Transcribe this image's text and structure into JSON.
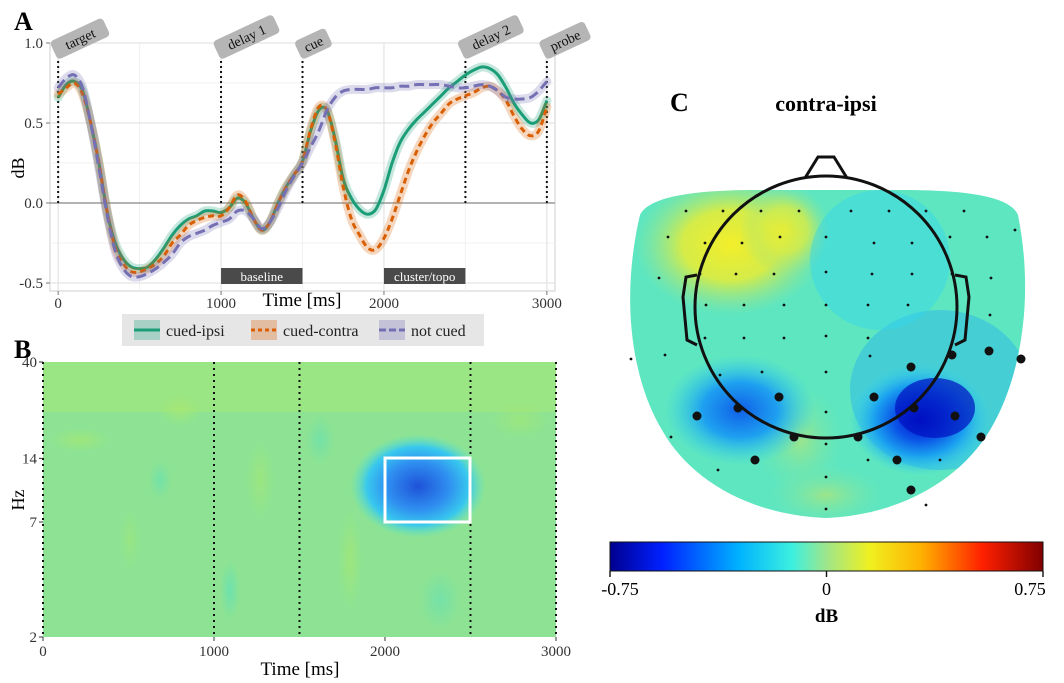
{
  "panels": {
    "A": {
      "letter": "A",
      "ylabel": "dB",
      "xlabel": "Time [ms]",
      "events": [
        {
          "label": "target",
          "t": 0
        },
        {
          "label": "delay 1",
          "t": 1000
        },
        {
          "label": "cue",
          "t": 1500
        },
        {
          "label": "delay 2",
          "t": 2500
        },
        {
          "label": "probe",
          "t": 3000
        }
      ],
      "windows": [
        {
          "label": "baseline",
          "from": 1000,
          "to": 1500
        },
        {
          "label": "cluster/topo",
          "from": 2000,
          "to": 2500
        }
      ],
      "legend": [
        {
          "label": "cued-ipsi",
          "color": "#1b9e77",
          "dash": "none"
        },
        {
          "label": "cued-contra",
          "color": "#d95f02",
          "dash": "6,4"
        },
        {
          "label": "not cued",
          "color": "#7570b3",
          "dash": "10,5"
        }
      ]
    },
    "B": {
      "letter": "B",
      "ylabel": "Hz",
      "xlabel": "Time [ms]",
      "yticks": [
        "2",
        "7",
        "14",
        "40"
      ],
      "xticks": [
        "0",
        "1000",
        "2000",
        "3000"
      ]
    },
    "C": {
      "letter": "C",
      "title": "contra-ipsi",
      "colorbar_label": "dB",
      "colorbar_ticks": [
        "-0.75",
        "0",
        "0.75"
      ]
    }
  },
  "chart_data": [
    {
      "type": "line",
      "panel": "A",
      "xlabel": "Time [ms]",
      "ylabel": "dB",
      "xlim": [
        -50,
        3050
      ],
      "ylim": [
        -0.55,
        1.0
      ],
      "xticks": [
        0,
        1000,
        2000,
        3000
      ],
      "yticks": [
        -0.5,
        0.0,
        0.5,
        1.0
      ],
      "ytick_labels": [
        "-0.5",
        "0.0",
        "0.5",
        "1.0"
      ],
      "x": [
        0,
        50,
        100,
        150,
        200,
        250,
        300,
        350,
        400,
        450,
        500,
        550,
        600,
        650,
        700,
        750,
        800,
        850,
        900,
        950,
        1000,
        1050,
        1100,
        1150,
        1200,
        1250,
        1300,
        1350,
        1400,
        1450,
        1500,
        1550,
        1600,
        1650,
        1700,
        1750,
        1800,
        1850,
        1900,
        1950,
        2000,
        2050,
        2100,
        2150,
        2200,
        2250,
        2300,
        2350,
        2400,
        2450,
        2500,
        2550,
        2600,
        2650,
        2700,
        2750,
        2800,
        2850,
        2900,
        2950,
        3000
      ],
      "series": [
        {
          "name": "cued-ipsi",
          "color": "#1b9e77",
          "dash": "none",
          "values": [
            0.66,
            0.74,
            0.76,
            0.7,
            0.5,
            0.25,
            -0.05,
            -0.25,
            -0.35,
            -0.4,
            -0.41,
            -0.4,
            -0.35,
            -0.28,
            -0.2,
            -0.14,
            -0.1,
            -0.08,
            -0.05,
            -0.05,
            -0.06,
            -0.03,
            0.03,
            0.0,
            -0.1,
            -0.17,
            -0.12,
            0.0,
            0.1,
            0.18,
            0.26,
            0.45,
            0.58,
            0.58,
            0.4,
            0.15,
            0.03,
            -0.04,
            -0.07,
            -0.04,
            0.08,
            0.25,
            0.38,
            0.46,
            0.52,
            0.57,
            0.62,
            0.67,
            0.72,
            0.76,
            0.8,
            0.83,
            0.85,
            0.84,
            0.8,
            0.72,
            0.62,
            0.55,
            0.5,
            0.52,
            0.64
          ]
        },
        {
          "name": "cued-contra",
          "color": "#d95f02",
          "dash": "6,4",
          "values": [
            0.68,
            0.72,
            0.75,
            0.68,
            0.5,
            0.25,
            -0.05,
            -0.28,
            -0.38,
            -0.43,
            -0.43,
            -0.41,
            -0.38,
            -0.33,
            -0.25,
            -0.2,
            -0.14,
            -0.11,
            -0.09,
            -0.08,
            -0.08,
            -0.03,
            0.05,
            0.01,
            -0.1,
            -0.17,
            -0.12,
            0.0,
            0.1,
            0.18,
            0.26,
            0.46,
            0.6,
            0.58,
            0.38,
            0.1,
            -0.1,
            -0.2,
            -0.28,
            -0.29,
            -0.22,
            -0.1,
            0.05,
            0.2,
            0.32,
            0.42,
            0.5,
            0.56,
            0.62,
            0.65,
            0.67,
            0.69,
            0.72,
            0.73,
            0.7,
            0.64,
            0.54,
            0.46,
            0.42,
            0.45,
            0.6
          ]
        },
        {
          "name": "not cued",
          "color": "#7570b3",
          "dash": "10,5",
          "values": [
            0.72,
            0.78,
            0.8,
            0.72,
            0.5,
            0.22,
            -0.07,
            -0.3,
            -0.41,
            -0.46,
            -0.46,
            -0.44,
            -0.41,
            -0.37,
            -0.32,
            -0.25,
            -0.21,
            -0.19,
            -0.17,
            -0.14,
            -0.12,
            -0.1,
            -0.05,
            -0.05,
            -0.1,
            -0.16,
            -0.12,
            -0.03,
            0.08,
            0.17,
            0.25,
            0.35,
            0.45,
            0.58,
            0.66,
            0.7,
            0.71,
            0.71,
            0.71,
            0.72,
            0.72,
            0.72,
            0.73,
            0.73,
            0.74,
            0.74,
            0.74,
            0.74,
            0.73,
            0.72,
            0.72,
            0.73,
            0.74,
            0.73,
            0.7,
            0.66,
            0.65,
            0.65,
            0.66,
            0.7,
            0.76
          ]
        }
      ]
    },
    {
      "type": "heatmap",
      "panel": "B",
      "xlabel": "Time [ms]",
      "ylabel": "Hz",
      "xlim": [
        0,
        3000
      ],
      "ylim": [
        2,
        40
      ],
      "yscale": "log",
      "xticks": [
        0,
        1000,
        2000,
        3000
      ],
      "yticks": [
        2,
        7,
        14,
        40
      ],
      "event_lines": [
        0,
        1000,
        1500,
        2500,
        3000
      ],
      "cluster_box": {
        "t_from": 2000,
        "t_to": 2500,
        "f_from": 7,
        "f_to": 14
      },
      "cluster_effect_db": -0.6
    },
    {
      "type": "heatmap",
      "panel": "C",
      "title": "contra-ipsi",
      "colorbar": {
        "label": "dB",
        "min": -0.75,
        "max": 0.75,
        "ticks": [
          -0.75,
          0,
          0.75
        ]
      }
    }
  ]
}
